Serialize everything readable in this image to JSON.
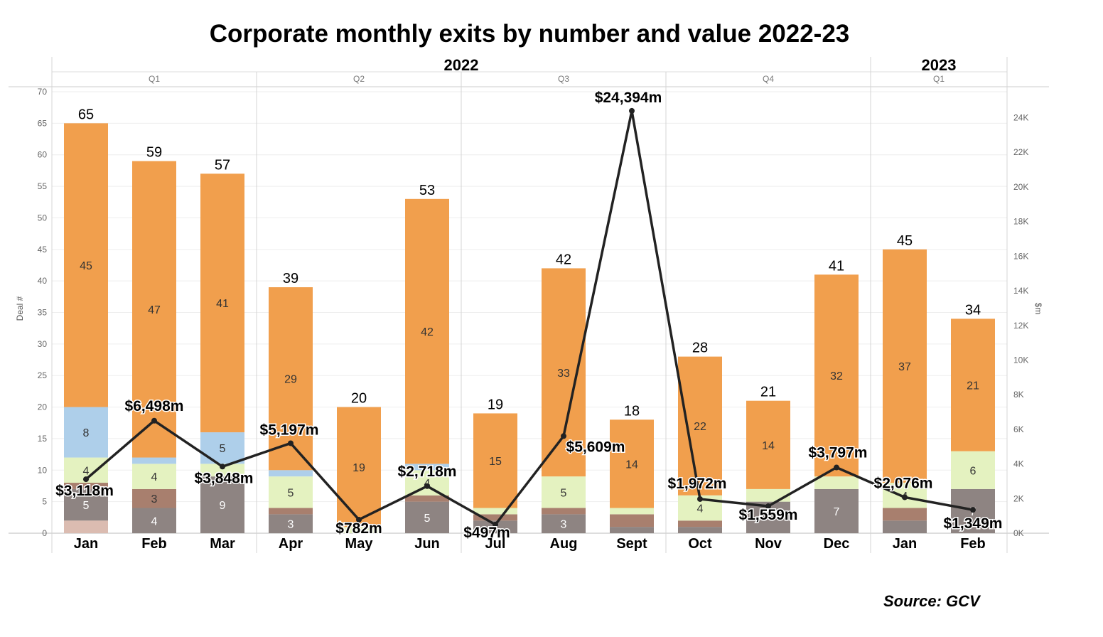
{
  "title": "Corporate monthly exits by number and value 2022-23",
  "source": "Source: GCV",
  "chart_data": {
    "type": "bar",
    "stacked": true,
    "years": [
      {
        "label": "2022",
        "start": 0,
        "end": 11
      },
      {
        "label": "2023",
        "start": 12,
        "end": 13
      }
    ],
    "quarters": [
      {
        "label": "Q1",
        "start": 0,
        "end": 2
      },
      {
        "label": "Q2",
        "start": 3,
        "end": 5
      },
      {
        "label": "Q3",
        "start": 6,
        "end": 8
      },
      {
        "label": "Q4",
        "start": 9,
        "end": 11
      },
      {
        "label": "Q1",
        "start": 12,
        "end": 13
      }
    ],
    "categories": [
      "Jan",
      "Feb",
      "Mar",
      "Apr",
      "May",
      "Jun",
      "Jul",
      "Aug",
      "Sept",
      "Oct",
      "Nov",
      "Dec",
      "Jan",
      "Feb"
    ],
    "series": [
      {
        "color": "#dbbcb1",
        "values": [
          2,
          0,
          0,
          0,
          0,
          0,
          0,
          0,
          0,
          0,
          0,
          0,
          0,
          0
        ],
        "labels": [
          "",
          "",
          "",
          "",
          "",
          "",
          "",
          "",
          "",
          "",
          "",
          "",
          "",
          ""
        ]
      },
      {
        "color": "#8e8482",
        "values": [
          5,
          4,
          9,
          3,
          0,
          5,
          2,
          3,
          1,
          1,
          5,
          7,
          2,
          7
        ],
        "labels": [
          "5",
          "4",
          "9",
          "3",
          "",
          "5",
          "",
          "3",
          "",
          "",
          "",
          "7",
          "",
          "7"
        ]
      },
      {
        "color": "#a87f6e",
        "values": [
          1,
          3,
          0,
          1,
          0,
          1,
          1,
          1,
          2,
          1,
          0,
          0,
          2,
          0
        ],
        "labels": [
          "",
          "3",
          "",
          "",
          "",
          "",
          "",
          "",
          "",
          "",
          "",
          "",
          "",
          ""
        ]
      },
      {
        "color": "#e4f2c0",
        "values": [
          4,
          4,
          2,
          5,
          1,
          4,
          1,
          5,
          1,
          4,
          2,
          2,
          4,
          6
        ],
        "labels": [
          "4",
          "4",
          "",
          "5",
          "",
          "4",
          "",
          "5",
          "",
          "4",
          "",
          "",
          "4",
          "6"
        ]
      },
      {
        "color": "#aecfea",
        "values": [
          8,
          1,
          5,
          1,
          0,
          1,
          0,
          0,
          0,
          0,
          0,
          0,
          0,
          0
        ],
        "labels": [
          "8",
          "",
          "5",
          "",
          "",
          "",
          "",
          "",
          "",
          "",
          "",
          "",
          "",
          ""
        ]
      },
      {
        "color": "#f19f4d",
        "values": [
          45,
          47,
          41,
          29,
          19,
          42,
          15,
          33,
          14,
          22,
          14,
          32,
          37,
          21
        ],
        "labels": [
          "45",
          "47",
          "41",
          "29",
          "19",
          "42",
          "15",
          "33",
          "14",
          "22",
          "14",
          "32",
          "37",
          "21"
        ]
      }
    ],
    "totals": [
      65,
      59,
      57,
      39,
      20,
      53,
      19,
      42,
      18,
      28,
      21,
      41,
      45,
      34
    ],
    "value_line": {
      "values": [
        3118,
        6498,
        3848,
        5197,
        782,
        2718,
        497,
        5609,
        24394,
        1972,
        1559,
        3797,
        2076,
        1349
      ],
      "labels": [
        "$3,118m",
        "$6,498m",
        "$3,848m",
        "$5,197m",
        "$782m",
        "$2,718m",
        "$497m",
        "$5,609m",
        "$24,394m",
        "$1,972m",
        "$1,559m",
        "$3,797m",
        "$2,076m",
        "$1,349m"
      ],
      "color": "#222222"
    },
    "ylabel": "Deal #",
    "ylim": [
      0,
      70
    ],
    "yticks": [
      0,
      5,
      10,
      15,
      20,
      25,
      30,
      35,
      40,
      45,
      50,
      55,
      60,
      65,
      70
    ],
    "y2label": "$m",
    "y2lim": [
      0,
      25500
    ],
    "y2ticks": [
      0,
      2000,
      4000,
      6000,
      8000,
      10000,
      12000,
      14000,
      16000,
      18000,
      20000,
      22000,
      24000
    ],
    "y2ticklabels": [
      "0K",
      "2K",
      "4K",
      "6K",
      "8K",
      "10K",
      "12K",
      "14K",
      "16K",
      "18K",
      "20K",
      "22K",
      "24K"
    ],
    "grid": true,
    "legend": "none"
  }
}
